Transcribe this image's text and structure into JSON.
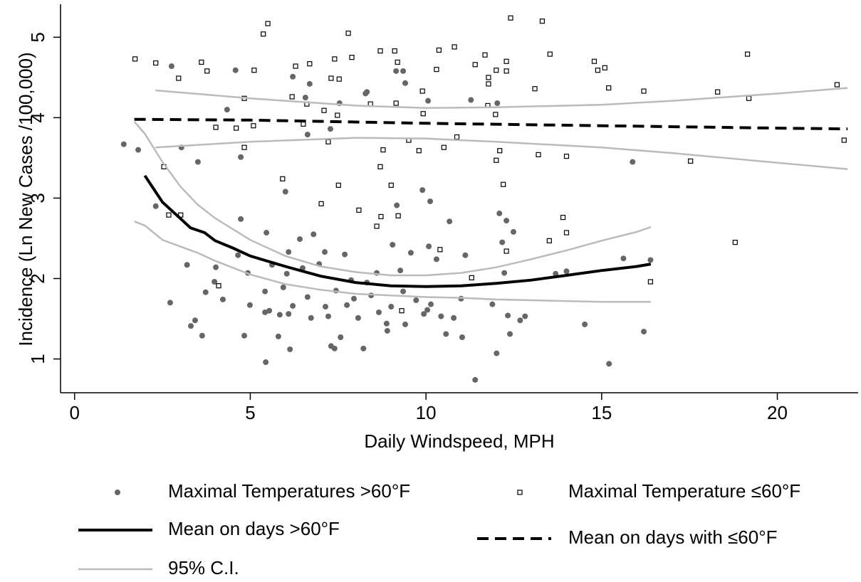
{
  "chart_data": {
    "type": "scatter",
    "x_label": "Daily Windspeed, MPH",
    "y_label": "Incidence (Ln New Cases /100,000)",
    "xlim": [
      -0.4,
      22.3
    ],
    "ylim": [
      0.58,
      5.41
    ],
    "xticks": [
      0,
      5,
      10,
      15,
      20
    ],
    "yticks": [
      1,
      2,
      3,
      4,
      5
    ],
    "grid": false,
    "legend": "bottom",
    "series": [
      {
        "name": "Maximal Temperatures >60°F",
        "type": "scatter",
        "marker": "circle",
        "color": "#666666",
        "x": [
          1.4,
          1.81,
          2.31,
          2.72,
          2.76,
          3.2,
          3.31,
          3.43,
          3.63,
          3.51,
          3.04,
          3.73,
          4.02,
          3.98,
          4.22,
          4.34,
          4.58,
          4.73,
          4.73,
          4.65,
          4.83,
          4.99,
          4.93,
          5.46,
          5.42,
          5.42,
          5.44,
          5.54,
          5.62,
          5.84,
          5.8,
          5.94,
          6.04,
          6.0,
          6.13,
          6.09,
          6.09,
          6.21,
          6.21,
          6.41,
          6.49,
          6.63,
          6.63,
          6.73,
          6.8,
          6.69,
          6.96,
          7.12,
          7.14,
          7.22,
          7.28,
          7.3,
          7.4,
          7.44,
          7.57,
          7.69,
          7.75,
          7.87,
          7.95,
          8.07,
          8.22,
          8.28,
          8.32,
          8.44,
          8.6,
          8.66,
          8.88,
          8.9,
          9.01,
          9.05,
          9.15,
          9.17,
          9.27,
          9.35,
          9.41,
          9.57,
          9.72,
          9.9,
          9.94,
          10.04,
          10.08,
          10.14,
          10.12,
          10.3,
          10.43,
          10.57,
          10.67,
          10.79,
          11.0,
          11.03,
          11.12,
          11.4,
          11.89,
          12.01,
          12.03,
          12.09,
          12.17,
          12.23,
          12.29,
          12.33,
          12.39,
          12.49,
          12.68,
          12.82,
          13.69,
          14.0,
          14.52,
          15.21,
          15.62,
          15.88,
          16.2,
          16.39,
          9.35,
          9.41,
          6.57,
          7.54,
          8.32,
          10.06,
          11.28
        ],
        "values": [
          3.67,
          3.6,
          2.9,
          1.7,
          4.64,
          2.17,
          1.41,
          1.48,
          1.29,
          3.45,
          3.63,
          1.83,
          2.14,
          1.96,
          1.74,
          4.1,
          4.59,
          3.51,
          2.74,
          2.29,
          1.29,
          1.67,
          2.07,
          2.57,
          1.84,
          1.58,
          0.96,
          1.6,
          2.17,
          1.55,
          1.28,
          1.89,
          2.06,
          3.08,
          1.12,
          1.56,
          2.33,
          1.66,
          4.51,
          2.49,
          2.13,
          1.77,
          3.79,
          1.51,
          2.55,
          4.42,
          2.18,
          2.33,
          1.65,
          1.53,
          3.86,
          1.16,
          1.13,
          1.85,
          1.27,
          2.3,
          1.67,
          1.98,
          1.75,
          1.51,
          1.13,
          4.3,
          1.95,
          1.79,
          2.07,
          1.58,
          1.44,
          1.35,
          1.65,
          2.42,
          4.58,
          2.91,
          2.1,
          1.84,
          1.43,
          2.32,
          1.73,
          3.1,
          1.56,
          1.61,
          2.4,
          1.68,
          2.96,
          2.24,
          1.53,
          1.31,
          2.71,
          1.51,
          1.75,
          1.27,
          2.29,
          0.74,
          1.68,
          1.07,
          4.18,
          2.81,
          2.45,
          2.07,
          2.72,
          1.54,
          1.31,
          2.58,
          1.48,
          1.53,
          2.06,
          2.09,
          1.43,
          0.94,
          2.25,
          3.45,
          1.34,
          2.23,
          4.58,
          4.43,
          4.25,
          4.18,
          4.32,
          4.21,
          4.22
        ]
      },
      {
        "name": "Maximal Temperature ≤60°F",
        "type": "scatter",
        "marker": "square",
        "color": "#000000",
        "x": [
          1.72,
          2.31,
          3.61,
          3.77,
          5.5,
          5.37,
          5.11,
          6.29,
          6.69,
          7.4,
          7.79,
          7.89,
          8.7,
          9.11,
          9.19,
          10.37,
          10.81,
          11.4,
          11.68,
          12.41,
          13.31,
          13.53,
          14.79,
          14.89,
          15.09,
          19.15,
          21.7,
          21.9,
          10.3,
          12.0,
          12.29,
          2.96,
          2.54,
          2.68,
          3.02,
          4.1,
          4.02,
          4.6,
          4.83,
          5.09,
          4.83,
          6.19,
          6.61,
          7.1,
          7.22,
          7.48,
          7.3,
          7.53,
          6.51,
          5.92,
          7.02,
          7.51,
          8.09,
          8.78,
          9.01,
          8.7,
          8.6,
          8.72,
          9.21,
          8.42,
          9.15,
          9.51,
          9.9,
          9.92,
          9.8,
          10.51,
          10.88,
          11.76,
          11.78,
          11.78,
          11.98,
          12.1,
          12.0,
          12.2,
          12.29,
          10.4,
          11.3,
          13.1,
          13.2,
          13.51,
          13.9,
          14.0,
          14.0,
          15.2,
          16.2,
          16.39,
          17.53,
          18.3,
          18.8,
          19.19,
          9.31,
          12.29
        ],
        "values": [
          4.73,
          4.68,
          4.69,
          4.58,
          5.17,
          5.04,
          4.59,
          4.64,
          4.67,
          4.73,
          5.05,
          4.75,
          4.83,
          4.83,
          4.69,
          4.84,
          4.88,
          4.66,
          4.78,
          5.24,
          5.2,
          4.79,
          4.7,
          4.59,
          4.62,
          4.79,
          4.41,
          3.72,
          4.6,
          4.59,
          4.7,
          4.49,
          3.39,
          2.79,
          2.79,
          1.91,
          3.88,
          3.87,
          3.63,
          3.9,
          4.24,
          4.26,
          4.17,
          4.09,
          3.7,
          4.03,
          4.49,
          4.48,
          3.92,
          3.24,
          2.93,
          3.16,
          2.85,
          3.6,
          3.16,
          3.39,
          2.65,
          2.77,
          2.78,
          4.17,
          4.18,
          3.72,
          4.33,
          4.05,
          3.59,
          3.63,
          3.76,
          4.15,
          4.5,
          4.42,
          4.04,
          3.59,
          3.47,
          3.17,
          2.34,
          2.36,
          2.01,
          4.36,
          3.54,
          2.47,
          2.76,
          2.57,
          3.52,
          4.37,
          4.33,
          1.96,
          3.46,
          4.32,
          2.45,
          4.24,
          1.6,
          4.58
        ]
      },
      {
        "name": "Mean on days >60°F",
        "type": "line",
        "color": "#000000",
        "dashed": false,
        "x": [
          2.0,
          2.5,
          3.0,
          3.3,
          3.7,
          4.0,
          4.5,
          5.0,
          6.0,
          7.0,
          8.0,
          9.0,
          10.0,
          11.0,
          12.0,
          13.0,
          14.0,
          15.0,
          16.0,
          16.4
        ],
        "values": [
          3.28,
          2.95,
          2.75,
          2.63,
          2.57,
          2.47,
          2.38,
          2.28,
          2.15,
          2.03,
          1.95,
          1.91,
          1.9,
          1.91,
          1.94,
          1.98,
          2.04,
          2.1,
          2.15,
          2.18
        ]
      },
      {
        "name": "Mean on days with ≤60°F",
        "type": "line",
        "color": "#000000",
        "dashed": true,
        "x": [
          1.7,
          5.0,
          10.0,
          15.0,
          20.0,
          22.0
        ],
        "values": [
          3.98,
          3.97,
          3.93,
          3.9,
          3.87,
          3.86
        ]
      },
      {
        "name": "95% C.I.",
        "type": "line",
        "color": "#bbbbbb",
        "dashed": false,
        "x": [
          1.7,
          2.0,
          2.5,
          3.0,
          3.5,
          4.0,
          5.0,
          6.0,
          7.0,
          8.0,
          9.0,
          10.0,
          11.0,
          12.0,
          13.0,
          14.0,
          15.0,
          16.0,
          16.4
        ],
        "values": [
          3.95,
          3.8,
          3.45,
          3.15,
          2.92,
          2.75,
          2.48,
          2.28,
          2.15,
          2.08,
          2.04,
          2.04,
          2.07,
          2.14,
          2.24,
          2.35,
          2.47,
          2.58,
          2.64
        ]
      },
      {
        "type": "line",
        "color": "#bbbbbb",
        "dashed": false,
        "x": [
          1.7,
          2.0,
          2.5,
          3.0,
          3.5,
          4.0,
          5.0,
          6.0,
          7.0,
          8.0,
          9.0,
          10.0,
          11.0,
          12.0,
          13.0,
          14.0,
          15.0,
          16.4
        ],
        "values": [
          2.71,
          2.66,
          2.48,
          2.4,
          2.32,
          2.22,
          2.05,
          1.93,
          1.86,
          1.81,
          1.79,
          1.77,
          1.76,
          1.74,
          1.73,
          1.72,
          1.71,
          1.71
        ]
      },
      {
        "type": "line",
        "color": "#bbbbbb",
        "dashed": false,
        "x": [
          2.3,
          5.0,
          8.0,
          10.0,
          12.0,
          15.0,
          17.0,
          20.0,
          22.0
        ],
        "values": [
          4.34,
          4.24,
          4.15,
          4.12,
          4.13,
          4.16,
          4.21,
          4.3,
          4.37
        ]
      },
      {
        "type": "line",
        "color": "#bbbbbb",
        "dashed": false,
        "x": [
          2.3,
          5.0,
          8.0,
          10.0,
          12.0,
          15.0,
          17.0,
          20.0,
          22.0
        ],
        "values": [
          3.63,
          3.7,
          3.75,
          3.74,
          3.7,
          3.63,
          3.56,
          3.44,
          3.36
        ]
      }
    ]
  }
}
